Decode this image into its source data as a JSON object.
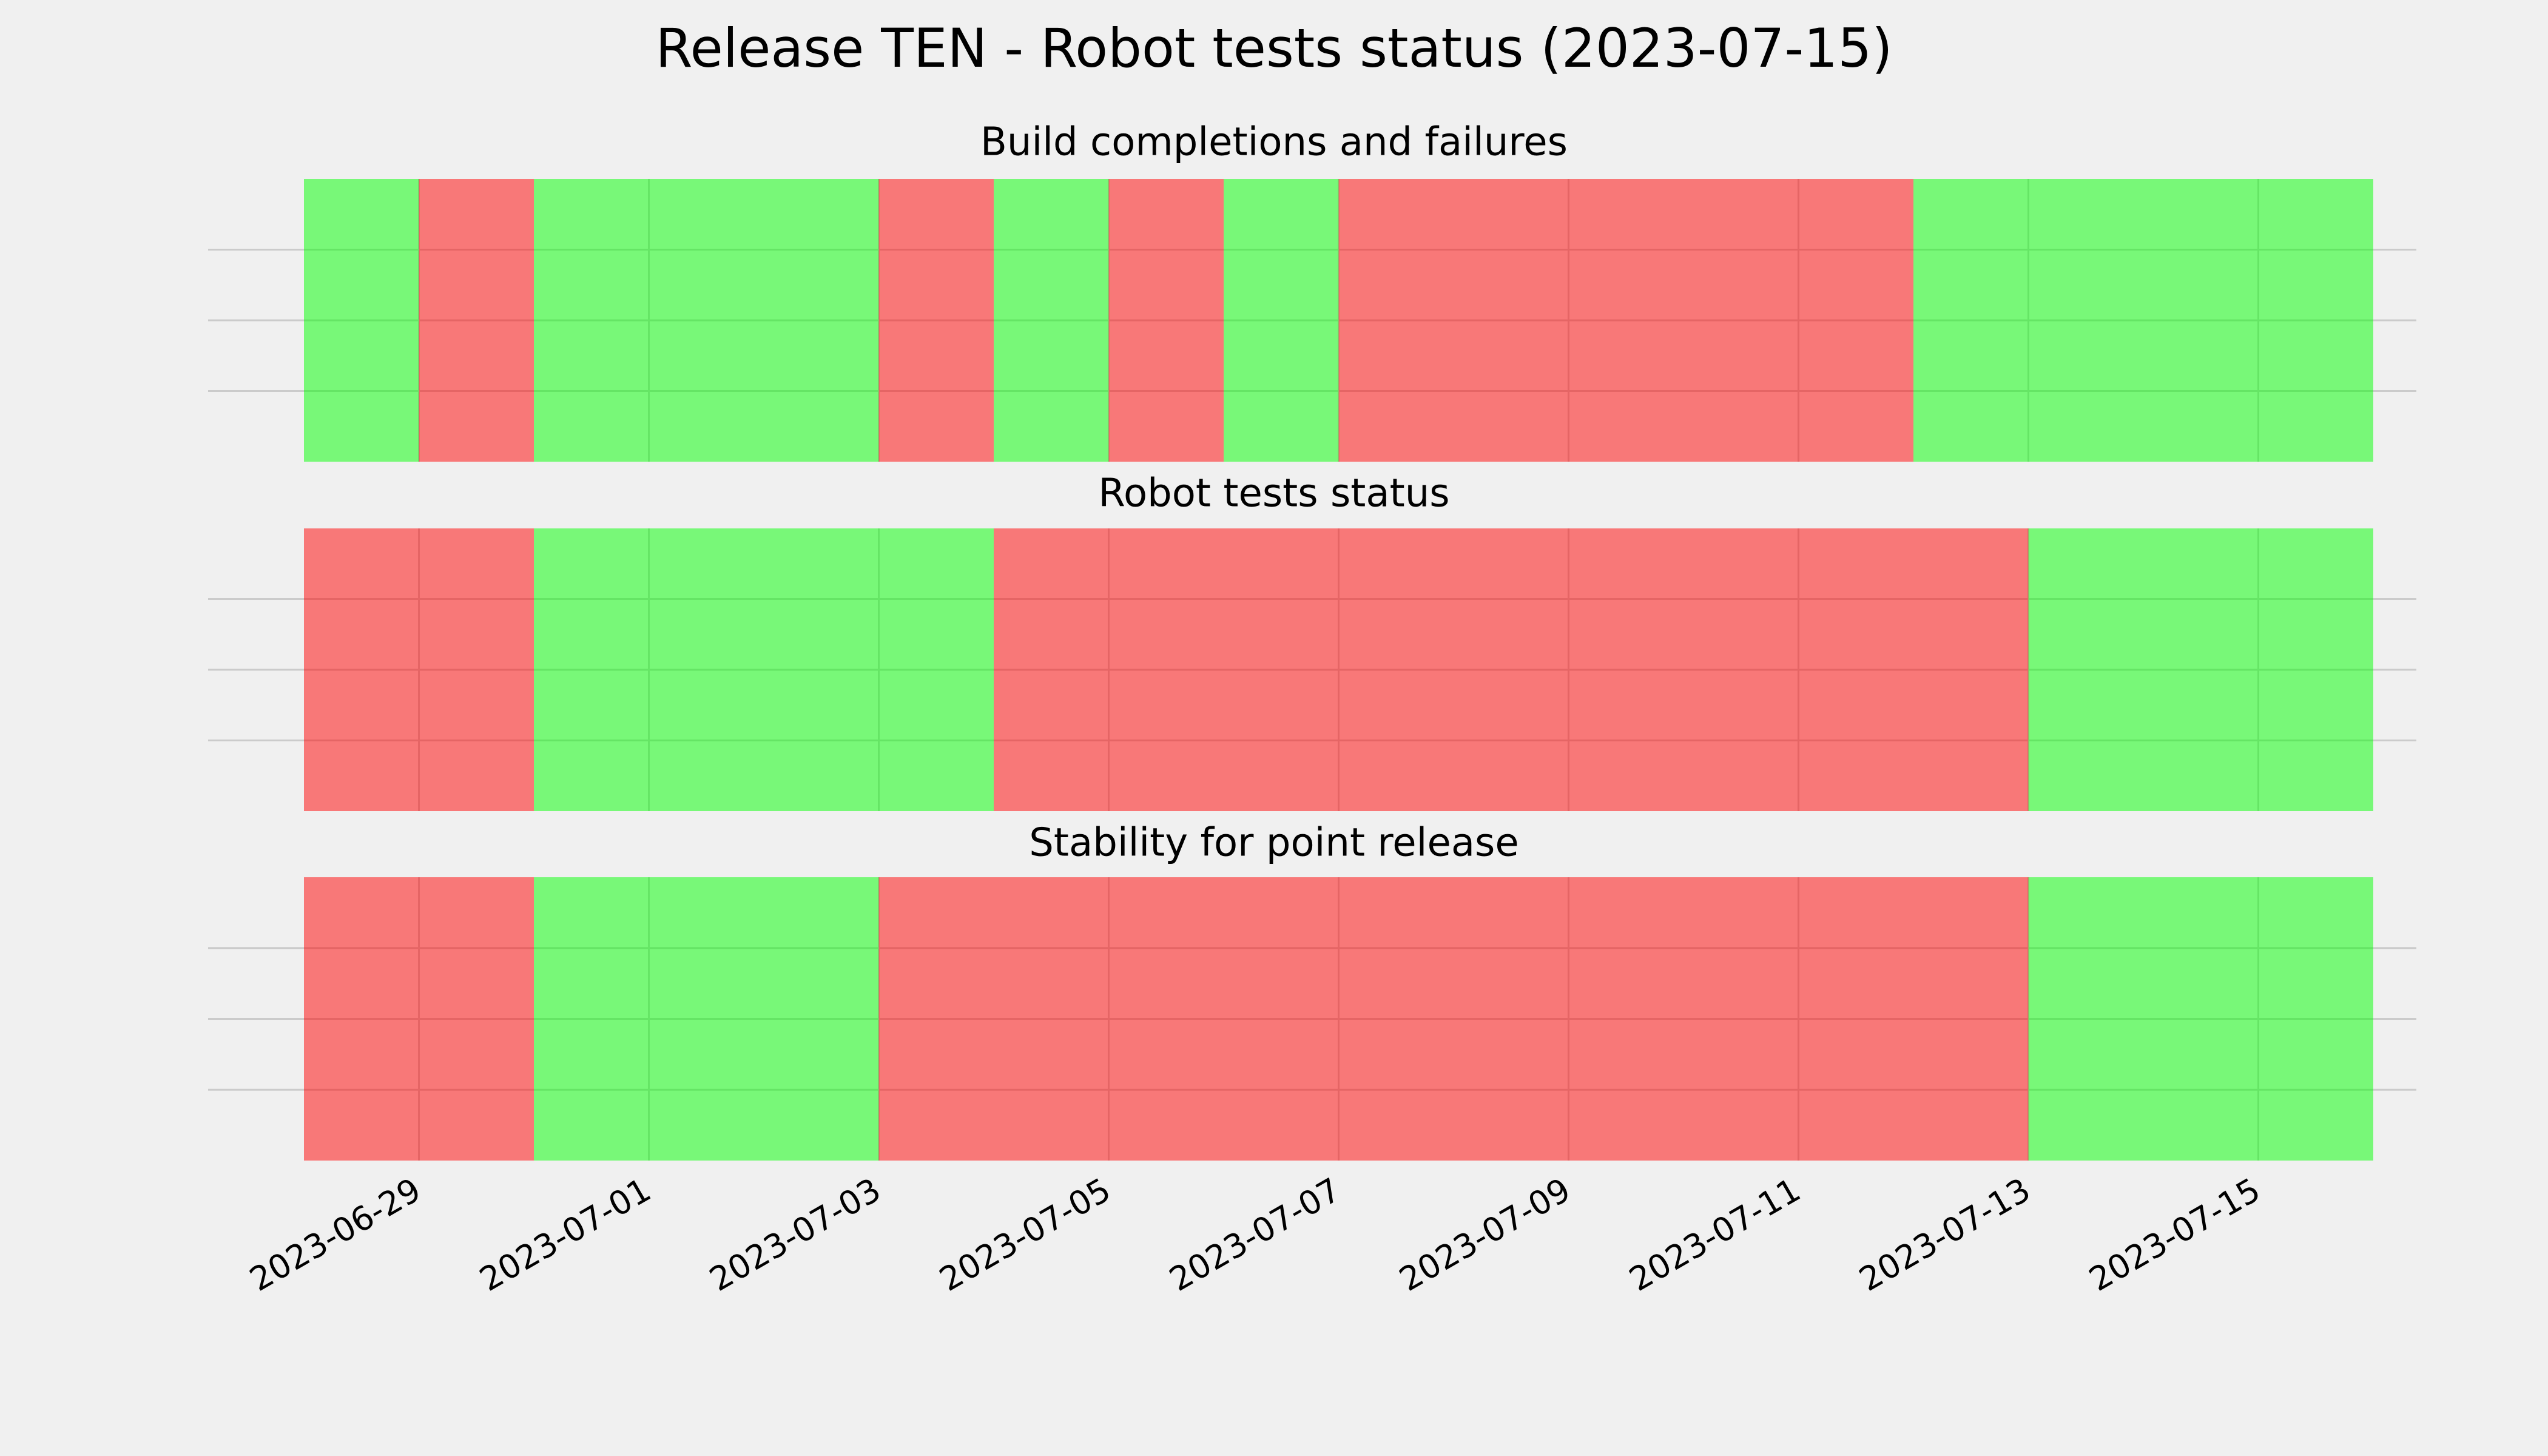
{
  "title": "Release TEN - Robot tests status (2023-07-15)",
  "chart_data": [
    {
      "type": "timeline",
      "title": "Build completions and failures",
      "x": [
        "2023-06-28",
        "2023-06-29",
        "2023-06-30",
        "2023-07-01",
        "2023-07-02",
        "2023-07-03",
        "2023-07-04",
        "2023-07-05",
        "2023-07-06",
        "2023-07-07",
        "2023-07-08",
        "2023-07-09",
        "2023-07-10",
        "2023-07-11",
        "2023-07-12",
        "2023-07-13",
        "2023-07-14",
        "2023-07-15"
      ],
      "values": [
        1,
        0,
        1,
        1,
        1,
        0,
        1,
        0,
        1,
        0,
        0,
        0,
        0,
        0,
        1,
        1,
        1,
        1
      ],
      "colors": [
        "#ff0000",
        "#00ff00"
      ],
      "alpha": 0.5,
      "xlim": [
        "2023-06-28",
        "2023-07-16"
      ],
      "grid": true
    },
    {
      "type": "timeline",
      "title": "Robot tests status",
      "x": [
        "2023-06-28",
        "2023-06-29",
        "2023-06-30",
        "2023-07-01",
        "2023-07-02",
        "2023-07-03",
        "2023-07-04",
        "2023-07-05",
        "2023-07-06",
        "2023-07-07",
        "2023-07-08",
        "2023-07-09",
        "2023-07-10",
        "2023-07-11",
        "2023-07-12",
        "2023-07-13",
        "2023-07-14",
        "2023-07-15"
      ],
      "values": [
        0,
        0,
        1,
        1,
        1,
        1,
        0,
        0,
        0,
        0,
        0,
        0,
        0,
        0,
        0,
        1,
        1,
        1
      ],
      "colors": [
        "#ff0000",
        "#00ff00"
      ],
      "alpha": 0.5,
      "xlim": [
        "2023-06-28",
        "2023-07-16"
      ],
      "grid": true
    },
    {
      "type": "timeline",
      "title": "Stability for point release",
      "x": [
        "2023-06-28",
        "2023-06-29",
        "2023-06-30",
        "2023-07-01",
        "2023-07-02",
        "2023-07-03",
        "2023-07-04",
        "2023-07-05",
        "2023-07-06",
        "2023-07-07",
        "2023-07-08",
        "2023-07-09",
        "2023-07-10",
        "2023-07-11",
        "2023-07-12",
        "2023-07-13",
        "2023-07-14",
        "2023-07-15"
      ],
      "values": [
        0,
        0,
        1,
        1,
        1,
        0,
        0,
        0,
        0,
        0,
        0,
        0,
        0,
        0,
        0,
        1,
        1,
        1
      ],
      "colors": [
        "#ff0000",
        "#00ff00"
      ],
      "alpha": 0.5,
      "xlim": [
        "2023-06-28",
        "2023-07-16"
      ],
      "grid": true,
      "xticks": [
        "2023-06-29",
        "2023-07-01",
        "2023-07-03",
        "2023-07-05",
        "2023-07-07",
        "2023-07-09",
        "2023-07-11",
        "2023-07-13",
        "2023-07-15"
      ]
    }
  ]
}
